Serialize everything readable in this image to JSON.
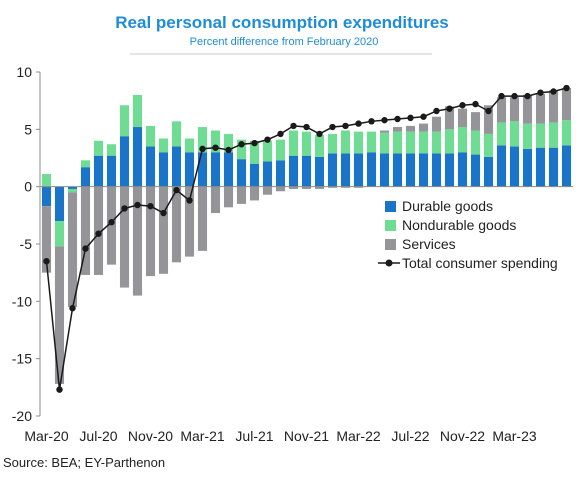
{
  "chart_data": {
    "type": "bar",
    "title": "Real personal consumption expenditures",
    "subtitle": "Percent difference from February 2020",
    "source": "Source: BEA; EY-Parthenon",
    "ylim": [
      -20,
      10
    ],
    "y_ticks": [
      "10",
      "5",
      "0",
      "-5",
      "-10",
      "-15",
      "-20"
    ],
    "x_tick_labels": [
      {
        "label": "Mar-20",
        "index": 0
      },
      {
        "label": "Jul-20",
        "index": 4
      },
      {
        "label": "Nov-20",
        "index": 8
      },
      {
        "label": "Mar-21",
        "index": 12
      },
      {
        "label": "Jul-21",
        "index": 16
      },
      {
        "label": "Nov-21",
        "index": 20
      },
      {
        "label": "Mar-22",
        "index": 24
      },
      {
        "label": "Jul-22",
        "index": 28
      },
      {
        "label": "Nov-22",
        "index": 32
      },
      {
        "label": "Mar-23",
        "index": 36
      }
    ],
    "x": [
      "Mar-20",
      "Apr-20",
      "May-20",
      "Jun-20",
      "Jul-20",
      "Aug-20",
      "Sep-20",
      "Oct-20",
      "Nov-20",
      "Dec-20",
      "Jan-21",
      "Feb-21",
      "Mar-21",
      "Apr-21",
      "May-21",
      "Jun-21",
      "Jul-21",
      "Aug-21",
      "Sep-21",
      "Oct-21",
      "Nov-21",
      "Dec-21",
      "Jan-22",
      "Feb-22",
      "Mar-22",
      "Apr-22",
      "May-22",
      "Jun-22",
      "Jul-22",
      "Aug-22",
      "Sep-22",
      "Oct-22",
      "Nov-22",
      "Dec-22",
      "Jan-23",
      "Feb-23",
      "Mar-23",
      "Apr-23",
      "May-23",
      "Jun-23",
      "Jul-23"
    ],
    "stacked": true,
    "legend_position": "right-center",
    "grid": false,
    "series": [
      {
        "name": "Durable goods",
        "type": "bar",
        "color": "#1a74c7",
        "values": [
          -1.7,
          -3.0,
          -0.2,
          1.7,
          2.7,
          2.7,
          4.4,
          5.2,
          3.5,
          3.0,
          3.5,
          3.0,
          3.0,
          3.0,
          3.0,
          2.4,
          2.0,
          2.2,
          2.3,
          2.7,
          2.7,
          2.6,
          2.9,
          2.9,
          2.9,
          3.0,
          2.9,
          2.9,
          2.9,
          2.9,
          2.9,
          2.9,
          3.0,
          2.8,
          2.6,
          3.6,
          3.5,
          3.3,
          3.4,
          3.4,
          3.6
        ]
      },
      {
        "name": "Nondurable goods",
        "type": "bar",
        "color": "#6fdc93",
        "values": [
          1.1,
          -2.2,
          -0.3,
          0.6,
          1.3,
          1.0,
          2.7,
          2.8,
          1.8,
          1.2,
          2.2,
          1.2,
          2.2,
          1.9,
          1.6,
          1.7,
          2.0,
          1.8,
          1.8,
          2.2,
          2.1,
          1.9,
          1.7,
          2.0,
          1.9,
          1.8,
          1.8,
          1.9,
          1.9,
          1.9,
          1.9,
          2.1,
          2.2,
          2.1,
          2.0,
          2.0,
          2.2,
          2.2,
          2.1,
          2.2,
          2.2
        ]
      },
      {
        "name": "Services",
        "type": "bar",
        "color": "#959599",
        "values": [
          -5.8,
          -12.0,
          -10.0,
          -7.7,
          -7.7,
          -6.8,
          -8.8,
          -9.5,
          -7.8,
          -7.6,
          -6.6,
          -6.1,
          -5.6,
          -2.3,
          -1.8,
          -1.5,
          -1.2,
          -0.7,
          -0.4,
          -0.2,
          -0.2,
          -0.2,
          -0.1,
          -0.1,
          -0.1,
          0.0,
          0.2,
          0.4,
          0.5,
          0.7,
          1.3,
          2.0,
          1.6,
          1.6,
          2.5,
          2.2,
          2.1,
          2.5,
          2.6,
          2.8,
          2.8
        ]
      },
      {
        "name": "Total consumer spending",
        "type": "line",
        "color": "#1a1a1a",
        "values": [
          -6.5,
          -17.7,
          -10.6,
          -5.4,
          -4.1,
          -3.1,
          -1.9,
          -1.6,
          -1.7,
          -2.3,
          -0.3,
          -1.2,
          3.3,
          3.4,
          3.2,
          3.7,
          3.8,
          4.1,
          4.6,
          5.3,
          5.2,
          4.6,
          5.2,
          5.3,
          5.5,
          5.7,
          5.8,
          5.9,
          6.0,
          6.1,
          6.6,
          6.8,
          7.1,
          7.2,
          6.6,
          7.9,
          7.9,
          7.9,
          8.2,
          8.3,
          8.6
        ]
      }
    ]
  }
}
